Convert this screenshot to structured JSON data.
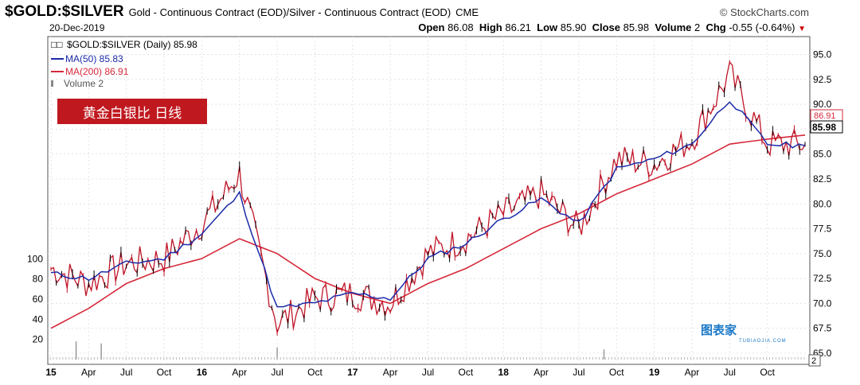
{
  "header": {
    "symbol": "$GOLD:$SILVER",
    "description": "Gold - Continuous Contract (EOD)/Silver - Continuous Contract (EOD)",
    "exchange": "CME",
    "brand": "© StockCharts.com",
    "date": "20-Dec-2019",
    "open_label": "Open",
    "open": "86.08",
    "high_label": "High",
    "high": "86.21",
    "low_label": "Low",
    "low": "85.90",
    "close_label": "Close",
    "close": "85.98",
    "volume_label": "Volume",
    "volume": "2",
    "chg_label": "Chg",
    "chg": "-0.55 (-0.64%)"
  },
  "legend": {
    "price": "$GOLD:$SILVER (Daily) 85.98",
    "ma50": "MA(50) 85.83",
    "ma200": "MA(200) 86.91",
    "volume": "Volume 2"
  },
  "badge": "黄金白银比 日线",
  "watermark": {
    "text": "图表家",
    "sub": "TUBIAOJIA.COM"
  },
  "colors": {
    "price": "#c01528",
    "ma50": "#1b2aa8",
    "ma200": "#d6283a",
    "volume": "#999999",
    "badge": "#c0181f"
  },
  "chart_data": {
    "type": "line",
    "title": "$GOLD:$SILVER (Daily)",
    "xlabel": "",
    "ylabel": "",
    "ylim": [
      65.0,
      96.0
    ],
    "yticks": [
      "95.0",
      "92.5",
      "90.0",
      "87.5",
      "85.0",
      "82.5",
      "80.0",
      "77.5",
      "75.0",
      "72.5",
      "70.0",
      "67.5",
      "65.0"
    ],
    "x": [
      "2015-01",
      "2015-04",
      "2015-07",
      "2015-10",
      "2016-01",
      "2016-04",
      "2016-07",
      "2016-10",
      "2017-01",
      "2017-04",
      "2017-07",
      "2017-10",
      "2018-01",
      "2018-04",
      "2018-07",
      "2018-10",
      "2019-01",
      "2019-04",
      "2019-07",
      "2019-10",
      "2019-12"
    ],
    "xtick_labels": [
      "15",
      "Apr",
      "Jul",
      "Oct",
      "16",
      "Apr",
      "Jul",
      "Oct",
      "17",
      "Apr",
      "Jul",
      "Oct",
      "18",
      "Apr",
      "Jul",
      "Oct",
      "19",
      "Apr",
      "Jul",
      "Oct"
    ],
    "series": [
      {
        "name": "$GOLD:$SILVER",
        "values": [
          73.5,
          72.0,
          74.0,
          74.5,
          78.0,
          83.0,
          68.0,
          70.5,
          71.0,
          70.0,
          75.0,
          76.5,
          79.0,
          81.0,
          77.5,
          84.5,
          84.0,
          86.5,
          93.0,
          86.0,
          85.98
        ]
      },
      {
        "name": "MA(50)",
        "values": [
          73.0,
          72.5,
          74.0,
          74.5,
          77.0,
          81.0,
          69.5,
          70.0,
          71.0,
          70.5,
          74.5,
          76.0,
          78.5,
          80.5,
          78.0,
          83.5,
          84.5,
          86.0,
          90.5,
          86.0,
          85.83
        ]
      },
      {
        "name": "MA(200)",
        "values": [
          67.5,
          69.5,
          72.0,
          73.5,
          74.5,
          76.5,
          75.0,
          72.5,
          71.0,
          70.0,
          72.0,
          73.5,
          75.5,
          77.5,
          79.0,
          81.0,
          82.5,
          84.0,
          86.0,
          86.5,
          86.91
        ]
      }
    ],
    "last_values": {
      "close": "85.98",
      "ma200": "86.91"
    },
    "volume_axis": {
      "ticks": [
        "100",
        "80",
        "60",
        "40",
        "20"
      ],
      "lim": [
        0,
        120
      ]
    },
    "volume_spikes": [
      {
        "x": "2015-03",
        "v": 18
      },
      {
        "x": "2015-05",
        "v": 16
      },
      {
        "x": "2016-07",
        "v": 12
      },
      {
        "x": "2018-09",
        "v": 10
      }
    ],
    "grid": true
  }
}
